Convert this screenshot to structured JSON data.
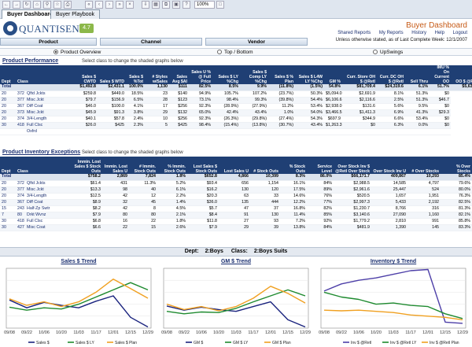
{
  "top_tabs": [
    "Buyer Dashboard",
    "Buyer Playbook"
  ],
  "zoom": "100%",
  "logo": {
    "name": "QUANTISENSE",
    "version": "4.7"
  },
  "app_title": "Buyer Dashboard",
  "top_links": [
    "Shared Reports",
    "My Reports",
    "History",
    "Help",
    "Logout"
  ],
  "as_of": "Unless otherwise stated, as of Last Complete Week: 12/1/2007",
  "main_tabs": [
    "Product",
    "Channel",
    "Vendor"
  ],
  "view_options": [
    "Product Overview",
    "Top / Bottom",
    "UpSwings"
  ],
  "selected_view": "Product Overview",
  "hint": "Select class to change the shaded graphs below",
  "performance": {
    "title": "Product Performance",
    "headers": [
      "Dept",
      "Class",
      "Sales $ CWTD",
      "Sales $ WTD",
      "Sales $ %Tot",
      "# Styles w/Sales",
      "Sales Avg $AI",
      "Sales U % @ Full Price",
      "Sales $ LY %Chg",
      "Sales $ Comp LY %Chg",
      "Sales $ % Plan",
      "Sales $ L4W LY %Chg",
      "GM %",
      "Curr. Store OH $ @Retl",
      "Curr. DC OH $ @Retl",
      "Sell Thru",
      "IMU % On Current OO",
      "OO $ @Retl"
    ],
    "total": [
      "Total",
      "",
      "$1,492.8",
      "$2,431.1",
      "100.0%",
      "1,130",
      "$111",
      "82.5%",
      "8.5%",
      "9.9%",
      "(11.8%)",
      "(1.5%)",
      "54.8%",
      "$81,709.4",
      "$24,319.6",
      "6.1%",
      "51.7%",
      "$5,635.6"
    ],
    "rows": [
      [
        "20",
        "372",
        "Qftd Jckts",
        "$259.8",
        "$449.0",
        "18.5%",
        "23",
        "$140",
        "94.9%",
        "105.7%",
        "107.2%",
        "(23.7%)",
        "50.3%",
        "$5,094.0",
        "$2,691.9",
        "8.1%",
        "51.3%",
        "$0"
      ],
      [
        "20",
        "377",
        "Misc Jckt",
        "$79.7",
        "$156.9",
        "6.5%",
        "28",
        "$123",
        "73.1%",
        "98.4%",
        "99.3%",
        "(39.8%)",
        "54.4%",
        "$6,106.6",
        "$2,116.6",
        "2.5%",
        "51.3%",
        "$46.7"
      ],
      [
        "20",
        "367",
        "Diff Coat",
        "$46.0",
        "$100.0",
        "4.1%",
        "17",
        "$256",
        "92.3%",
        "(28.9%)",
        "(27.9%)",
        "11.2%",
        "53.4%",
        "$2,938.0",
        "$131.6",
        "5.6%",
        "9.5%",
        "$0"
      ],
      [
        "20",
        "373",
        "Misc Jckt",
        "$45.9",
        "$91.3",
        "3.8%",
        "29",
        "$132",
        "65.0%",
        "42.4%",
        "43.4%",
        "1.0%",
        "54.0%",
        "$3,466.5",
        "$1,411.3",
        "6.9%",
        "41.3%",
        "$29.3"
      ],
      [
        "20",
        "374",
        "3/4-Length",
        "$40.1",
        "$57.8",
        "2.4%",
        "10",
        "$256",
        "92.3%",
        "(26.3%)",
        "(29.8%)",
        "(27.4%)",
        "54.3%",
        "$697.9",
        "$344.9",
        "6.6%",
        "53.4%",
        "$0"
      ],
      [
        "30",
        "418",
        "Full Clsc",
        "$26.0",
        "$425",
        "2.3%",
        "5",
        "$425",
        "98.4%",
        "(15.4%)",
        "(13.8%)",
        "(30.7%)",
        "43.4%",
        "$1,263.3",
        "$0",
        "6.3%",
        "0.0%",
        "$0"
      ],
      [
        "",
        "",
        "Oxfrd",
        "",
        "",
        "",
        "",
        "",
        "",
        "",
        "",
        "",
        "",
        "",
        "",
        "",
        "",
        ""
      ]
    ]
  },
  "inventory": {
    "title": "Product Inventory Exceptions",
    "headers": [
      "Dept",
      "Class",
      "Immin. Lost Sales $ Stock Outs",
      "Immin. Lost Sales U",
      "# Immin. Stock Outs",
      "% Immin. Stock Outs",
      "Lost Sales $ Stock Outs",
      "Lost Sales U",
      "# Stock Outs",
      "% Stock Outs",
      "Service Level",
      "Over Stock Inv $ @Retl Over Stock",
      "Over Stock Inv U",
      "# Over Stocks",
      "% Over Stocks"
    ],
    "total": [
      "Total",
      "",
      "$758.2",
      "2,869",
      "7,824",
      "1.8%",
      "$652.8",
      "4,866",
      "10,399",
      "8.3%",
      "86.0%",
      "$66,171.7",
      "409,867",
      "10,293",
      "85.4%"
    ],
    "rows": [
      [
        "20",
        "372",
        "Qftd Jckts",
        "$61.4",
        "431",
        "11.3%",
        "5.2%",
        "$93.4",
        "656",
        "1,154",
        "16.1%",
        "84%",
        "$2,988.5",
        "14,585",
        "4,797",
        "79.6%"
      ],
      [
        "20",
        "377",
        "Misc Jckt",
        "$13.3",
        "98",
        "40",
        "6.1%",
        "$16.2",
        "130",
        "120",
        "17.5%",
        "89%",
        "$2,961.6",
        "25,447",
        "524",
        "80.0%"
      ],
      [
        "20",
        "374",
        "3/4-Length",
        "$12.5",
        "42",
        "12",
        "2.2%",
        "$20.3",
        "63",
        "33",
        "14.6%",
        "76%",
        "$520.5",
        "1,657",
        "1,951",
        "76.3%"
      ],
      [
        "20",
        "367",
        "Diff Coat",
        "$8.9",
        "32",
        "45",
        "1.4%",
        "$36.0",
        "135",
        "444",
        "12.2%",
        "77%",
        "$2,997.3",
        "5,433",
        "2,192",
        "82.5%"
      ],
      [
        "15",
        "243",
        "Half-Zp Swtr",
        "$8.2",
        "42",
        "8",
        "4.5%",
        "$5.7",
        "47",
        "37",
        "16.8%",
        "82%",
        "$1,230.7",
        "8,766",
        "316",
        "81.3%"
      ],
      [
        "7",
        "80",
        "Drkt Wvnz",
        "$7.9",
        "80",
        "80",
        "2.1%",
        "$8.4",
        "91",
        "130",
        "11.4%",
        "85%",
        "$3,140.6",
        "27,090",
        "1,160",
        "82.1%"
      ],
      [
        "30",
        "418",
        "Full Clsc",
        "$6.8",
        "16",
        "22",
        "1.8%",
        "$11.8",
        "27",
        "93",
        "7.2%",
        "92%",
        "$1,779.2",
        "2,810",
        "991",
        "85.8%"
      ],
      [
        "30",
        "427",
        "Misc Coat",
        "$6.6",
        "22",
        "15",
        "2.6%",
        "$7.9",
        "29",
        "39",
        "13.8%",
        "84%",
        "$481.9",
        "1,390",
        "145",
        "83.3%"
      ]
    ]
  },
  "filter": {
    "dept_label": "Dept:",
    "dept_value": "2:Boys",
    "class_label": "Class:",
    "class_value": "2:Boys Suits"
  },
  "colors": {
    "header_blue": "#1f3f74",
    "series_green": "#1e8a2f",
    "series_orange": "#f0a020",
    "series_navy": "#1a237e",
    "series_purple": "#4d3fa8",
    "brand": "#2a4f86",
    "accent": "#c65a16"
  },
  "chart_data": [
    {
      "type": "line",
      "title": "Sales $ Trend",
      "categories": [
        "09/08",
        "09/22",
        "10/06",
        "10/20",
        "11/03",
        "11/17",
        "12/01",
        "12/15",
        "12/29"
      ],
      "series": [
        {
          "name": "Sales $",
          "values": [
            47,
            34,
            43,
            38,
            34,
            45,
            54,
            18,
            2
          ]
        },
        {
          "name": "Sales $ LY",
          "values": [
            35,
            30,
            34,
            32,
            40,
            52,
            64,
            76,
            64
          ]
        },
        {
          "name": "Sales $ Plan",
          "values": [
            49,
            38,
            44,
            36,
            44,
            60,
            82,
            66,
            50
          ]
        }
      ]
    },
    {
      "type": "line",
      "title": "GM $ Trend",
      "categories": [
        "09/08",
        "09/22",
        "10/06",
        "10/20",
        "11/03",
        "11/17",
        "12/01",
        "12/15",
        "12/29"
      ],
      "series": [
        {
          "name": "GM $",
          "values": [
            37,
            30,
            35,
            31,
            28,
            36,
            44,
            14,
            2
          ]
        },
        {
          "name": "GM $ LY",
          "values": [
            28,
            24,
            27,
            26,
            33,
            44,
            54,
            64,
            54
          ]
        },
        {
          "name": "GM $ Plan",
          "values": [
            40,
            31,
            36,
            29,
            36,
            50,
            70,
            58,
            42
          ]
        }
      ]
    },
    {
      "type": "line",
      "title": "Inventory $ Trend",
      "categories": [
        "09/08",
        "09/22",
        "10/06",
        "10/20",
        "11/03",
        "11/17",
        "12/01",
        "12/15",
        "12/29"
      ],
      "series": [
        {
          "name": "Inv $ @Retl",
          "values": [
            62,
            74,
            80,
            84,
            90,
            96,
            98,
            10,
            8
          ]
        },
        {
          "name": "Inv $ @Retl LY",
          "values": [
            60,
            52,
            48,
            40,
            42,
            38,
            36,
            24,
            16
          ]
        },
        {
          "name": "Inv $ @Retl Plan",
          "values": [
            30,
            29,
            30,
            28,
            26,
            22,
            20,
            18,
            14
          ]
        }
      ]
    }
  ]
}
